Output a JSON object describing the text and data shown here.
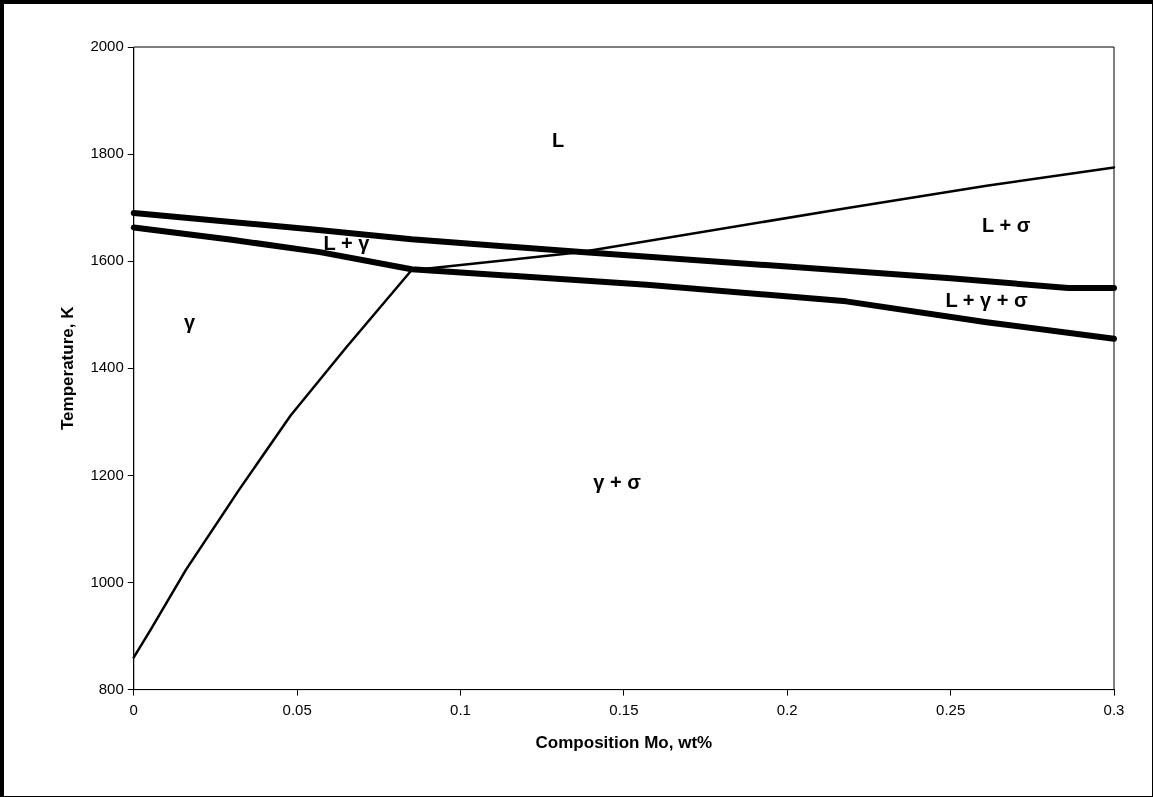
{
  "chart_data": {
    "type": "line",
    "xlabel": "Composition Mo, wt%",
    "ylabel": "Temperature, K",
    "xlim": [
      0,
      0.3
    ],
    "xticks": [
      0,
      0.05,
      0.1,
      0.15,
      0.2,
      0.25,
      0.3
    ],
    "ylim": [
      800,
      2000
    ],
    "yticks": [
      800,
      1000,
      1200,
      1400,
      1600,
      1800,
      2000
    ],
    "grid": false,
    "legend": false,
    "marker": "none",
    "line_style": "solid",
    "series": [
      {
        "color": "#000000",
        "x": [
          0,
          0.055,
          0.085,
          0.137,
          0.2,
          0.25,
          0.286,
          0.3
        ],
        "values": [
          1690,
          1659,
          1641,
          1617,
          1590,
          1568,
          1550,
          1550
        ]
      },
      {
        "color": "#000000",
        "x": [
          0,
          0.03,
          0.057,
          0.085,
          0.157,
          0.218,
          0.261,
          0.3
        ],
        "values": [
          1663,
          1640,
          1617,
          1585,
          1556,
          1525,
          1486,
          1455
        ]
      },
      {
        "color": "#000000",
        "x": [
          0,
          0.005,
          0.016,
          0.032,
          0.048,
          0.065,
          0.085,
          0.137,
          0.218,
          0.261,
          0.3
        ],
        "values": [
          860,
          910,
          1024,
          1171,
          1312,
          1439,
          1583,
          1617,
          1699,
          1741,
          1775
        ]
      }
    ],
    "annotations": [
      "L",
      "L + σ",
      "L + γ",
      "L + γ + σ",
      "γ",
      "γ + σ"
    ]
  }
}
